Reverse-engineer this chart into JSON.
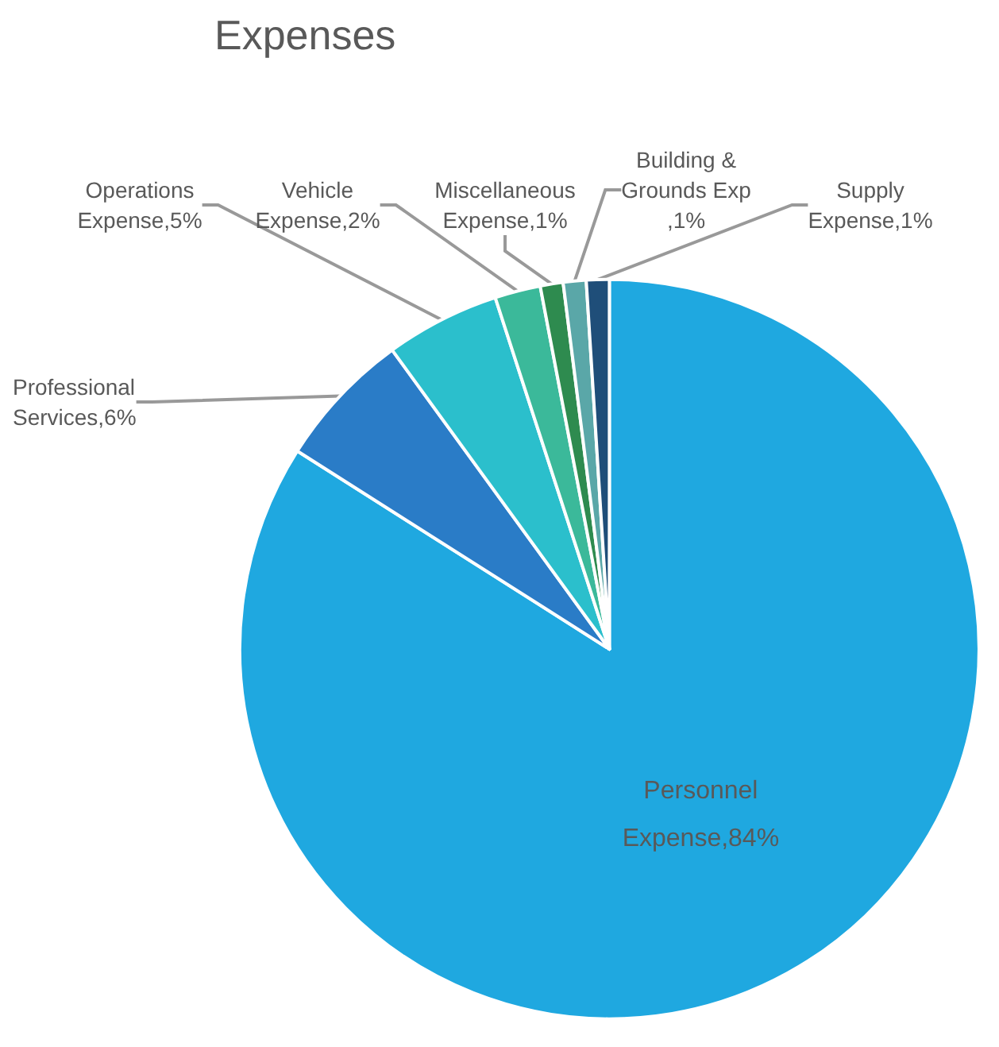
{
  "chart_data": {
    "type": "pie",
    "title": "Expenses",
    "categories": [
      "Personnel Expense",
      "Professional Services",
      "Operations Expense",
      "Vehicle Expense",
      "Miscellaneous Expense",
      "Building & Grounds Exp",
      "Supply Expense"
    ],
    "values": [
      84,
      6,
      5,
      2,
      1,
      1,
      1
    ],
    "colors": [
      "#1fa8e0",
      "#2a7cc7",
      "#2bbfcc",
      "#3bb99a",
      "#2e8b4f",
      "#5aa7a8",
      "#1f4e79"
    ],
    "value_labels": [
      ",84%",
      ",6%",
      ",5%",
      ",2%",
      ",1%",
      ",1%",
      ",1%"
    ],
    "legend": false
  }
}
